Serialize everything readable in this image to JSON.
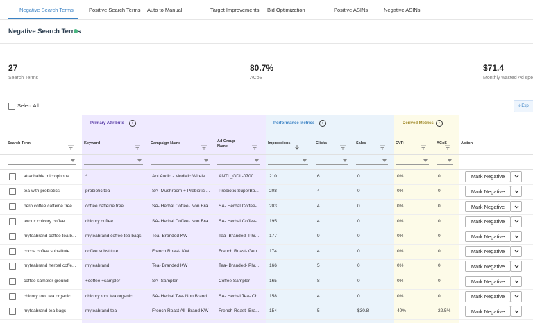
{
  "tabs": [
    "Negative Search Terms",
    "Positive Search Terms",
    "Auto to Manual",
    "Target Improvements",
    "Bid Optimization",
    "Positive ASINs",
    "Negative ASINs"
  ],
  "header": {
    "title": "Negative Search Terms"
  },
  "stats": [
    {
      "value": "27",
      "label": "Search Terms"
    },
    {
      "value": "80.7%",
      "label": "ACoS"
    },
    {
      "value": "$71.4",
      "label": "Monthly wasted Ad spe"
    }
  ],
  "toolbar": {
    "select_all": "Select All",
    "export": "Exp"
  },
  "table": {
    "groups": [
      "Primary Attribute",
      "Performance Metrics",
      "Derived Metrics"
    ],
    "columns": [
      "Search Term",
      "Keyword",
      "Campaign Name",
      "Ad Group Name",
      "Impressions",
      "Clicks",
      "Sales",
      "CVR",
      "ACoS",
      "Action"
    ],
    "action_label": "Mark Negative",
    "rows": [
      [
        "attachable microphone",
        "*",
        "Ant Audio - ModMic Wirele...",
        "ANTL_GDL-0700",
        "210",
        "6",
        "0",
        "0%",
        "0"
      ],
      [
        "tea with probiotics",
        "probiotic tea",
        "SA- Mushroom + Prebiotic ...",
        "Prebiotic SuperBo...",
        "208",
        "4",
        "0",
        "0%",
        "0"
      ],
      [
        "pero coffee caffeine free",
        "coffee caffeine free",
        "SA- Herbal Coffee- Non Bra...",
        "SA- Herbal Coffee- ...",
        "203",
        "4",
        "0",
        "0%",
        "0"
      ],
      [
        "leroux chicory coffee",
        "chicory coffee",
        "SA- Herbal Coffee- Non Bra...",
        "SA- Herbal Coffee- ...",
        "195",
        "4",
        "0",
        "0%",
        "0"
      ],
      [
        "myteabrand coffee tea b...",
        "myteabrand coffee tea bags",
        "Tea- Branded KW",
        "Tea- Branded- Phr...",
        "177",
        "9",
        "0",
        "0%",
        "0"
      ],
      [
        "cocoa coffee substitute",
        "coffee substitute",
        "French Roast- KW",
        "French Roast- Gen...",
        "174",
        "4",
        "0",
        "0%",
        "0"
      ],
      [
        "myteabrand herbal coffe...",
        "myteabrand",
        "Tea- Branded KW",
        "Tea- Branded- Phr...",
        "166",
        "5",
        "0",
        "0%",
        "0"
      ],
      [
        "coffee sampler ground",
        "+coffee +sampler",
        "SA- Sampler",
        "Coffee Sampler",
        "165",
        "8",
        "0",
        "0%",
        "0"
      ],
      [
        "chicory root tea organic",
        "chicory root tea organic",
        "SA- Herbal Tea- Non Brand...",
        "SA- Herbal Tea- Ch...",
        "158",
        "4",
        "0",
        "0%",
        "0"
      ],
      [
        "myteabrand tea bags",
        "myteabrand tea",
        "French Roast All- Brand KW",
        "French Roast- Bra...",
        "154",
        "5",
        "$30.8",
        "40%",
        "22.5%"
      ]
    ]
  }
}
